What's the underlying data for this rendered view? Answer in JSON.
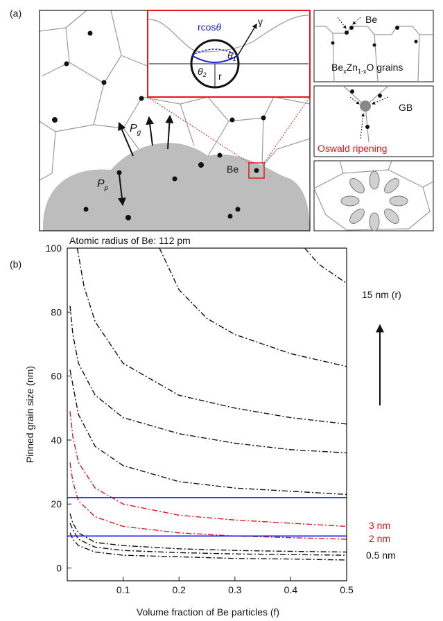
{
  "panel_a": {
    "label": "(a)",
    "inset": {
      "rcos": "rcos",
      "theta": "θ",
      "gamma": "γ",
      "theta1": {
        "main": "θ",
        "sub": "1"
      },
      "theta2": {
        "main": "θ",
        "sub": "2"
      },
      "r": "r"
    },
    "main": {
      "be": "Be",
      "pg": {
        "main": "P",
        "sub": "g"
      },
      "pp": {
        "main": "P",
        "sub": "p"
      }
    },
    "side": {
      "be": "Be",
      "grains": [
        "Be",
        "x",
        "Zn",
        "1-x",
        "O grains"
      ],
      "gb": "GB",
      "ripening": "Oswald ripening"
    }
  },
  "panel_b_label": "(b)",
  "chart_data": {
    "type": "line",
    "xlabel": "Volume fraction of Be particles (f)",
    "ylabel": "Pinned grain size (nm)",
    "xlim": [
      0,
      0.5
    ],
    "ylim": [
      -4,
      100
    ],
    "xticks": [
      0.1,
      0.2,
      0.3,
      0.4,
      0.5
    ],
    "yticks": [
      0,
      20,
      40,
      60,
      80,
      100
    ],
    "series": [
      {
        "color": "#111111",
        "x": [
          0.425,
          0.45,
          0.5
        ],
        "values": [
          100,
          95,
          89
        ]
      },
      {
        "color": "#111111",
        "x": [
          0.165,
          0.2,
          0.25,
          0.3,
          0.4,
          0.5
        ],
        "values": [
          100,
          87,
          78,
          73,
          67,
          63
        ]
      },
      {
        "color": "#111111",
        "x": [
          0.018,
          0.03,
          0.05,
          0.1,
          0.2,
          0.3,
          0.4,
          0.5
        ],
        "values": [
          100,
          88,
          77,
          64,
          54,
          50,
          47,
          45
        ]
      },
      {
        "color": "#111111",
        "x": [
          0.005,
          0.01,
          0.02,
          0.05,
          0.1,
          0.2,
          0.3,
          0.4,
          0.5
        ],
        "values": [
          82,
          73,
          64,
          54,
          47,
          42,
          39,
          37,
          36
        ]
      },
      {
        "color": "#111111",
        "x": [
          0.005,
          0.02,
          0.05,
          0.1,
          0.2,
          0.3,
          0.4,
          0.5
        ],
        "values": [
          62,
          48,
          38,
          32,
          27,
          25,
          24,
          23
        ]
      },
      {
        "color": "#e8141b",
        "x": [
          0.005,
          0.01,
          0.02,
          0.05,
          0.1,
          0.2,
          0.3,
          0.4,
          0.5
        ],
        "values": [
          49,
          41,
          33,
          25,
          20,
          16.5,
          15,
          14,
          13
        ]
      },
      {
        "color": "#e8141b",
        "x": [
          0.005,
          0.01,
          0.02,
          0.05,
          0.1,
          0.2,
          0.3,
          0.4,
          0.5
        ],
        "values": [
          33,
          27,
          21,
          16,
          13,
          11,
          10,
          9.5,
          9
        ]
      },
      {
        "color": "#111111",
        "x": [
          0.005,
          0.01,
          0.02,
          0.05,
          0.1,
          0.2,
          0.3,
          0.4,
          0.5
        ],
        "values": [
          17,
          14,
          11,
          8,
          7,
          6,
          5.5,
          5.2,
          5
        ]
      },
      {
        "color": "#111111",
        "x": [
          0.005,
          0.01,
          0.02,
          0.05,
          0.1,
          0.2,
          0.3,
          0.4,
          0.5
        ],
        "values": [
          14,
          12,
          9,
          6.5,
          5.5,
          4.8,
          4.4,
          4.2,
          4
        ]
      },
      {
        "color": "#111111",
        "x": [
          0.005,
          0.01,
          0.02,
          0.05,
          0.1,
          0.2,
          0.3,
          0.4,
          0.5
        ],
        "values": [
          11,
          9,
          7,
          5,
          4,
          3.5,
          3,
          2.8,
          2.5
        ]
      },
      {
        "color": "#2020e0",
        "x": [
          0,
          0.5
        ],
        "values": [
          22,
          22
        ],
        "style": "solid"
      },
      {
        "color": "#2020e0",
        "x": [
          0,
          0.5
        ],
        "values": [
          10,
          10
        ],
        "style": "solid"
      }
    ],
    "annotations": [
      {
        "text": "Atomic radius of Be: 112 pm",
        "color": "#111111"
      },
      {
        "text": "15 nm (r)",
        "color": "#111111"
      },
      {
        "text": "3 nm",
        "color": "#e8141b"
      },
      {
        "text": "2 nm",
        "color": "#e8141b"
      },
      {
        "text": "0.5 nm",
        "color": "#111111"
      }
    ]
  }
}
